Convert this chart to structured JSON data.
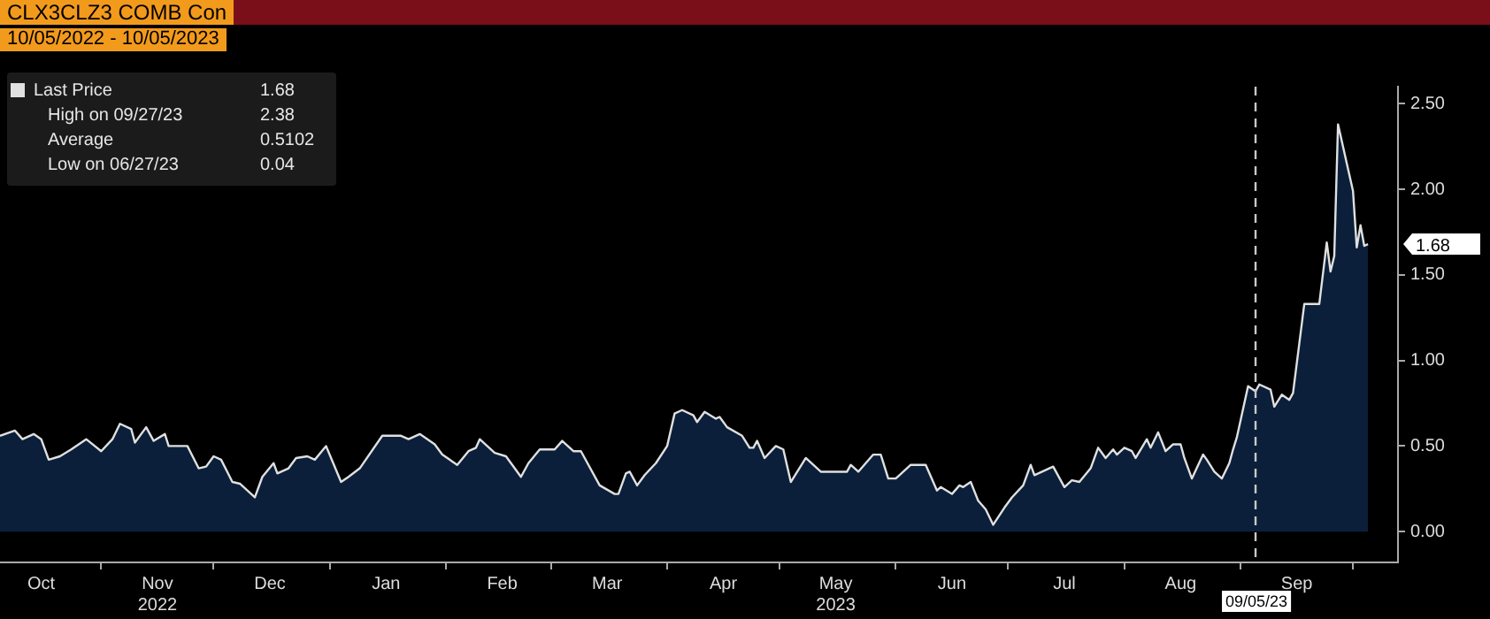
{
  "chart_data": {
    "type": "area",
    "title": "CLX3CLZ3 COMB Con",
    "subtitle": "10/05/2022 - 10/05/2023",
    "xlim": [
      "2022-10-05",
      "2023-10-13"
    ],
    "xticks": [
      {
        "value": "2022-10-16",
        "label": "Oct"
      },
      {
        "value": "2022-11-01",
        "label": null
      },
      {
        "value": "2022-11-16",
        "label": "Nov\n2022"
      },
      {
        "value": "2022-12-01",
        "label": null
      },
      {
        "value": "2022-12-16",
        "label": "Dec"
      },
      {
        "value": "2023-01-01",
        "label": null
      },
      {
        "value": "2023-01-16",
        "label": "Jan"
      },
      {
        "value": "2023-02-01",
        "label": null
      },
      {
        "value": "2023-02-16",
        "label": "Feb"
      },
      {
        "value": "2023-03-01",
        "label": null
      },
      {
        "value": "2023-03-16",
        "label": "Mar"
      },
      {
        "value": "2023-04-01",
        "label": null
      },
      {
        "value": "2023-04-16",
        "label": "Apr"
      },
      {
        "value": "2023-05-01",
        "label": null
      },
      {
        "value": "2023-05-16",
        "label": "May\n2023"
      },
      {
        "value": "2023-06-01",
        "label": null
      },
      {
        "value": "2023-06-16",
        "label": "Jun"
      },
      {
        "value": "2023-07-01",
        "label": null
      },
      {
        "value": "2023-07-16",
        "label": "Jul"
      },
      {
        "value": "2023-08-01",
        "label": null
      },
      {
        "value": "2023-08-16",
        "label": "Aug"
      },
      {
        "value": "2023-09-01",
        "label": null
      },
      {
        "value": "2023-09-16",
        "label": "Sep"
      },
      {
        "value": "2023-10-01",
        "label": null
      }
    ],
    "ylim": [
      -0.18,
      2.6
    ],
    "yticks": [
      {
        "value": 0,
        "label": "0.00"
      },
      {
        "value": 0.5,
        "label": "0.50"
      },
      {
        "value": 1,
        "label": "1.00"
      },
      {
        "value": 1.5,
        "label": "1.50"
      },
      {
        "value": 2,
        "label": "2.00"
      },
      {
        "value": 2.5,
        "label": "2.50"
      }
    ],
    "legend": "top left",
    "series": [
      {
        "name": "Last Price",
        "color": "#e0e0e0",
        "x": [
          "2022-10-05",
          "2022-10-09",
          "2022-10-11",
          "2022-10-14",
          "2022-10-16",
          "2022-10-18",
          "2022-10-21",
          "2022-10-24",
          "2022-10-28",
          "2022-11-01",
          "2022-11-04",
          "2022-11-06",
          "2022-11-09",
          "2022-11-10",
          "2022-11-13",
          "2022-11-15",
          "2022-11-18",
          "2022-11-19",
          "2022-11-24",
          "2022-11-27",
          "2022-11-29",
          "2022-12-01",
          "2022-12-03",
          "2022-12-06",
          "2022-12-08",
          "2022-12-12",
          "2022-12-14",
          "2022-12-17",
          "2022-12-18",
          "2022-12-21",
          "2022-12-23",
          "2022-12-26",
          "2022-12-28",
          "2022-12-31",
          "2023-01-04",
          "2023-01-06",
          "2023-01-09",
          "2023-01-15",
          "2023-01-20",
          "2023-01-22",
          "2023-01-25",
          "2023-01-29",
          "2023-01-31",
          "2023-02-04",
          "2023-02-07",
          "2023-02-09",
          "2023-02-10",
          "2023-02-14",
          "2023-02-17",
          "2023-02-21",
          "2023-02-23",
          "2023-02-26",
          "2023-03-02",
          "2023-03-04",
          "2023-03-07",
          "2023-03-09",
          "2023-03-14",
          "2023-03-18",
          "2023-03-19",
          "2023-03-21",
          "2023-03-22",
          "2023-03-24",
          "2023-03-26",
          "2023-03-29",
          "2023-04-01",
          "2023-04-03",
          "2023-04-05",
          "2023-04-08",
          "2023-04-09",
          "2023-04-11",
          "2023-04-14",
          "2023-04-15",
          "2023-04-17",
          "2023-04-21",
          "2023-04-23",
          "2023-04-24",
          "2023-04-25",
          "2023-04-27",
          "2023-04-30",
          "2023-05-02",
          "2023-05-04",
          "2023-05-08",
          "2023-05-12",
          "2023-05-19",
          "2023-05-20",
          "2023-05-22",
          "2023-05-24",
          "2023-05-26",
          "2023-05-28",
          "2023-05-30",
          "2023-06-01",
          "2023-06-05",
          "2023-06-09",
          "2023-06-12",
          "2023-06-13",
          "2023-06-16",
          "2023-06-18",
          "2023-06-19",
          "2023-06-21",
          "2023-06-23",
          "2023-06-25",
          "2023-06-27",
          "2023-06-30",
          "2023-07-02",
          "2023-07-05",
          "2023-07-07",
          "2023-07-08",
          "2023-07-13",
          "2023-07-16",
          "2023-07-18",
          "2023-07-20",
          "2023-07-23",
          "2023-07-25",
          "2023-07-27",
          "2023-07-29",
          "2023-07-30",
          "2023-08-01",
          "2023-08-03",
          "2023-08-04",
          "2023-08-07",
          "2023-08-08",
          "2023-08-10",
          "2023-08-12",
          "2023-08-14",
          "2023-08-16",
          "2023-08-17",
          "2023-08-19",
          "2023-08-22",
          "2023-08-23",
          "2023-08-25",
          "2023-08-27",
          "2023-08-29",
          "2023-08-30",
          "2023-08-31",
          "2023-09-03",
          "2023-09-05",
          "2023-09-06",
          "2023-09-09",
          "2023-09-10",
          "2023-09-12",
          "2023-09-14",
          "2023-09-15",
          "2023-09-18",
          "2023-09-22",
          "2023-09-24",
          "2023-09-25",
          "2023-09-26",
          "2023-09-27",
          "2023-10-01",
          "2023-10-02",
          "2023-10-03",
          "2023-10-04",
          "2023-10-05"
        ],
        "values": [
          0.56,
          0.59,
          0.54,
          0.57,
          0.54,
          0.42,
          0.44,
          0.48,
          0.54,
          0.47,
          0.54,
          0.63,
          0.6,
          0.52,
          0.61,
          0.53,
          0.57,
          0.5,
          0.5,
          0.37,
          0.38,
          0.44,
          0.42,
          0.29,
          0.28,
          0.2,
          0.32,
          0.4,
          0.34,
          0.37,
          0.43,
          0.44,
          0.42,
          0.5,
          0.29,
          0.32,
          0.37,
          0.56,
          0.56,
          0.54,
          0.57,
          0.51,
          0.45,
          0.39,
          0.47,
          0.49,
          0.54,
          0.46,
          0.44,
          0.32,
          0.4,
          0.48,
          0.48,
          0.53,
          0.47,
          0.47,
          0.27,
          0.22,
          0.22,
          0.34,
          0.35,
          0.27,
          0.33,
          0.4,
          0.5,
          0.69,
          0.71,
          0.68,
          0.64,
          0.7,
          0.66,
          0.67,
          0.61,
          0.56,
          0.49,
          0.49,
          0.53,
          0.43,
          0.5,
          0.48,
          0.29,
          0.43,
          0.35,
          0.35,
          0.39,
          0.35,
          0.4,
          0.45,
          0.45,
          0.31,
          0.31,
          0.39,
          0.39,
          0.24,
          0.26,
          0.22,
          0.27,
          0.26,
          0.29,
          0.18,
          0.13,
          0.04,
          0.14,
          0.2,
          0.27,
          0.39,
          0.33,
          0.38,
          0.26,
          0.3,
          0.29,
          0.37,
          0.49,
          0.43,
          0.48,
          0.45,
          0.49,
          0.47,
          0.43,
          0.54,
          0.49,
          0.58,
          0.47,
          0.51,
          0.51,
          0.43,
          0.31,
          0.45,
          0.42,
          0.35,
          0.31,
          0.4,
          0.48,
          0.55,
          0.85,
          0.82,
          0.86,
          0.83,
          0.73,
          0.8,
          0.77,
          0.81,
          1.33,
          1.33,
          1.69,
          1.52,
          1.61,
          2.38,
          1.99,
          1.66,
          1.79,
          1.67,
          1.68
        ]
      }
    ],
    "ref_lines": [
      {
        "axis": "x",
        "value": "2023-09-05",
        "label": "09/05/23",
        "color": "#c8c8c8",
        "line_style": "dashed"
      }
    ],
    "annotations": [
      "1.68",
      "High on 09/27/23",
      "2.38",
      "Average",
      "0.5102",
      "Low on 06/27/23",
      "0.04",
      {
        "text": "1.68",
        "x": "2023-10-05",
        "y": 1.68
      }
    ]
  }
}
